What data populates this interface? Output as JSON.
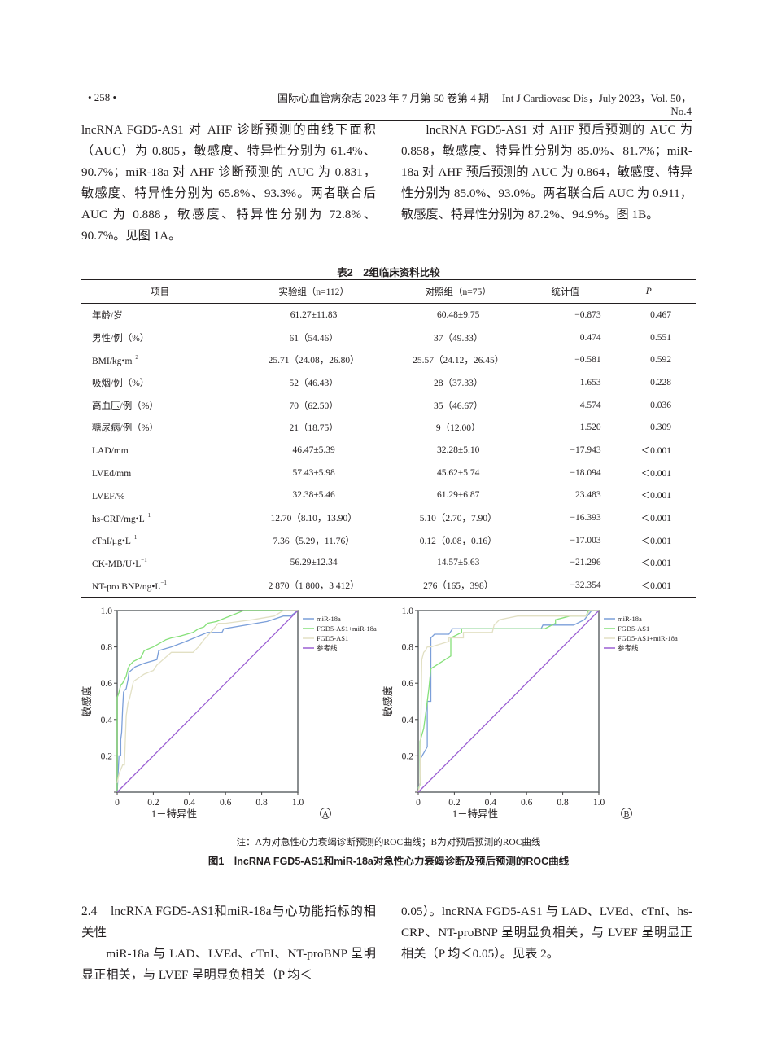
{
  "header": {
    "page_number": "• 258 •",
    "journal_cn": "国际心血管病杂志 2023 年 7 月第 50 卷第 4 期",
    "journal_en": "Int J Cardiovasc Dis，July 2023，Vol. 50，No.4"
  },
  "top_text": {
    "left_paragraph": "lncRNA FGD5-AS1 对 AHF 诊断预测的曲线下面积（AUC）为 0.805，敏感度、特异性分别为 61.4%、90.7%；miR-18a 对 AHF 诊断预测的 AUC 为 0.831，敏感度、特异性分别为 65.8%、93.3%。两者联合后 AUC 为 0.888，敏感度、特异性分别为 72.8%、90.7%。见图 1A。",
    "right_paragraph": "lncRNA FGD5-AS1 对 AHF 预后预测的 AUC 为 0.858，敏感度、特异性分别为 85.0%、81.7%；miR-18a 对 AHF 预后预测的 AUC 为 0.864，敏感度、特异性分别为 85.0%、93.0%。两者联合后 AUC 为 0.911，敏感度、特异性分别为 87.2%、94.9%。图 1B。"
  },
  "table2": {
    "title": "表2　2组临床资料比较",
    "headers": [
      "项目",
      "实验组（n=112）",
      "对照组（n=75）",
      "统计值",
      "P"
    ],
    "rows": [
      {
        "item": "年龄/岁",
        "sup": "",
        "exp": "61.27±11.83",
        "ctrl": "60.48±9.75",
        "stat": "−0.873",
        "p": "0.467"
      },
      {
        "item": "男性/例（%）",
        "sup": "",
        "exp": "61（54.46）",
        "ctrl": "37（49.33）",
        "stat": "0.474",
        "p": "0.551"
      },
      {
        "item": "BMI/kg•m",
        "sup": "−2",
        "exp": "25.71（24.08，26.80）",
        "ctrl": "25.57（24.12，26.45）",
        "stat": "−0.581",
        "p": "0.592"
      },
      {
        "item": "吸烟/例（%）",
        "sup": "",
        "exp": "52（46.43）",
        "ctrl": "28（37.33）",
        "stat": "1.653",
        "p": "0.228"
      },
      {
        "item": "高血压/例（%）",
        "sup": "",
        "exp": "70（62.50）",
        "ctrl": "35（46.67）",
        "stat": "4.574",
        "p": "0.036"
      },
      {
        "item": "糖尿病/例（%）",
        "sup": "",
        "exp": "21（18.75）",
        "ctrl": "9（12.00）",
        "stat": "1.520",
        "p": "0.309"
      },
      {
        "item": "LAD/mm",
        "sup": "",
        "exp": "46.47±5.39",
        "ctrl": "32.28±5.10",
        "stat": "−17.943",
        "p": "＜0.001"
      },
      {
        "item": "LVEd/mm",
        "sup": "",
        "exp": "57.43±5.98",
        "ctrl": "45.62±5.74",
        "stat": "−18.094",
        "p": "＜0.001"
      },
      {
        "item": "LVEF/%",
        "sup": "",
        "exp": "32.38±5.46",
        "ctrl": "61.29±6.87",
        "stat": "23.483",
        "p": "＜0.001"
      },
      {
        "item": "hs-CRP/mg•L",
        "sup": "−1",
        "exp": "12.70（8.10，13.90）",
        "ctrl": "5.10（2.70，7.90）",
        "stat": "−16.393",
        "p": "＜0.001"
      },
      {
        "item": "cTnI/μg•L",
        "sup": "−1",
        "exp": "7.36（5.29，11.76）",
        "ctrl": "0.12（0.08，0.16）",
        "stat": "−17.003",
        "p": "＜0.001"
      },
      {
        "item": "CK-MB/U•L",
        "sup": "−1",
        "exp": "56.29±12.34",
        "ctrl": "14.57±5.63",
        "stat": "−21.296",
        "p": "＜0.001"
      },
      {
        "item": "NT-pro BNP/ng•L",
        "sup": "−1",
        "exp": "2 870（1 800，3 412）",
        "ctrl": "276（165，398）",
        "stat": "−32.354",
        "p": "＜0.001"
      }
    ]
  },
  "chart_data": [
    {
      "type": "line",
      "panel": "A",
      "title": "",
      "xlabel": "1－特异性",
      "ylabel": "敏感度",
      "xlim": [
        0,
        1
      ],
      "ylim": [
        0,
        1
      ],
      "x_ticks": [
        "0",
        "0.2",
        "0.4",
        "0.6",
        "0.8",
        "1.0"
      ],
      "y_ticks": [
        "0.2",
        "0.4",
        "0.6",
        "0.8",
        "1.0"
      ],
      "grid": false,
      "legend_position": "right-top",
      "series": [
        {
          "name": "miR-18a",
          "color": "#7b9fd9",
          "x": [
            0,
            0.01,
            0.02,
            0.02,
            0.025,
            0.03,
            0.035,
            0.04,
            0.05,
            0.06,
            0.065,
            0.1,
            0.15,
            0.22,
            0.23,
            0.3,
            0.38,
            0.5,
            0.58,
            0.59,
            0.83,
            0.92,
            0.96,
            1.0
          ],
          "y": [
            0,
            0.2,
            0.2,
            0.29,
            0.33,
            0.46,
            0.55,
            0.56,
            0.57,
            0.62,
            0.66,
            0.69,
            0.71,
            0.73,
            0.78,
            0.8,
            0.83,
            0.88,
            0.88,
            0.9,
            0.94,
            0.97,
            0.97,
            1.0
          ]
        },
        {
          "name": "FGD5-AS1+miR-18a",
          "color": "#86e07a",
          "x": [
            0,
            0,
            0.01,
            0.02,
            0.03,
            0.05,
            0.06,
            0.07,
            0.09,
            0.13,
            0.15,
            0.2,
            0.27,
            0.3,
            0.35,
            0.42,
            0.45,
            0.48,
            0.5,
            0.55,
            0.6,
            0.65,
            0.7,
            1.0
          ],
          "y": [
            0,
            0.52,
            0.55,
            0.59,
            0.6,
            0.64,
            0.68,
            0.7,
            0.72,
            0.74,
            0.78,
            0.8,
            0.84,
            0.85,
            0.86,
            0.88,
            0.9,
            0.91,
            0.93,
            0.94,
            0.96,
            0.98,
            1.0,
            1.0
          ]
        },
        {
          "name": "FGD5-AS1",
          "color": "#e2e0c4",
          "x": [
            0,
            0.01,
            0.03,
            0.04,
            0.05,
            0.06,
            0.07,
            0.09,
            0.15,
            0.2,
            0.22,
            0.3,
            0.42,
            0.45,
            0.48,
            0.5,
            0.56,
            0.6,
            0.75,
            0.87,
            0.92,
            1.0
          ],
          "y": [
            0.05,
            0.1,
            0.15,
            0.15,
            0.42,
            0.49,
            0.52,
            0.61,
            0.65,
            0.67,
            0.7,
            0.77,
            0.77,
            0.8,
            0.84,
            0.86,
            0.93,
            0.93,
            0.95,
            0.97,
            1.0,
            1.0
          ]
        },
        {
          "name": "参考线",
          "color": "#9b5fd3",
          "x": [
            0,
            1
          ],
          "y": [
            0,
            1
          ]
        }
      ]
    },
    {
      "type": "line",
      "panel": "B",
      "title": "",
      "xlabel": "1－特异性",
      "ylabel": "敏感度",
      "xlim": [
        0,
        1
      ],
      "ylim": [
        0,
        1
      ],
      "x_ticks": [
        "0",
        "0.2",
        "0.4",
        "0.6",
        "0.8",
        "1.0"
      ],
      "y_ticks": [
        "0.2",
        "0.4",
        "0.6",
        "0.8",
        "1.0"
      ],
      "grid": false,
      "legend_position": "right-top",
      "series": [
        {
          "name": "miR-18a",
          "color": "#7b9fd9",
          "x": [
            0,
            0.01,
            0.01,
            0.05,
            0.05,
            0.07,
            0.07,
            0.09,
            0.17,
            0.19,
            0.68,
            0.69,
            0.86,
            0.92,
            0.96,
            1.0
          ],
          "y": [
            0.02,
            0.05,
            0.18,
            0.25,
            0.5,
            0.5,
            0.85,
            0.87,
            0.87,
            0.9,
            0.9,
            0.92,
            0.92,
            0.95,
            1.0,
            1.0
          ]
        },
        {
          "name": "FGD5-AS1",
          "color": "#86e07a",
          "x": [
            0,
            0.01,
            0.01,
            0.03,
            0.05,
            0.06,
            0.07,
            0.18,
            0.18,
            0.24,
            0.24,
            0.7,
            0.76,
            0.76,
            0.84,
            0.93,
            0.94,
            1.0
          ],
          "y": [
            0.02,
            0.04,
            0.28,
            0.35,
            0.5,
            0.58,
            0.68,
            0.75,
            0.85,
            0.88,
            0.9,
            0.9,
            0.93,
            0.95,
            0.97,
            0.97,
            1.0,
            1.0
          ]
        },
        {
          "name": "FGD5-AS1+miR-18a",
          "color": "#e2e0c4",
          "x": [
            0,
            0.01,
            0.02,
            0.03,
            0.04,
            0.05,
            0.07,
            0.17,
            0.17,
            0.25,
            0.25,
            0.41,
            0.42,
            0.45,
            0.55,
            0.93,
            0.95,
            1.0
          ],
          "y": [
            0,
            0.05,
            0.73,
            0.77,
            0.78,
            0.8,
            0.8,
            0.83,
            0.85,
            0.85,
            0.88,
            0.88,
            0.92,
            0.95,
            0.97,
            0.97,
            1.0,
            1.0
          ]
        },
        {
          "name": "参考线",
          "color": "#9b5fd3",
          "x": [
            0,
            1
          ],
          "y": [
            0,
            1
          ]
        }
      ]
    }
  ],
  "figure": {
    "panel_a_label": "A",
    "panel_b_label": "B",
    "note": "注：A为对急性心力衰竭诊断预测的ROC曲线；B为对预后预测的ROC曲线",
    "caption": "图1　lncRNA FGD5-AS1和miR-18a对急性心力衰竭诊断及预后预测的ROC曲线"
  },
  "section": {
    "heading": "2.4　lncRNA FGD5-AS1和miR-18a与心功能指标的相关性",
    "left_paragraph": "miR-18a 与 LAD、LVEd、cTnI、NT-proBNP 呈明显正相关，与 LVEF 呈明显负相关（P 均＜",
    "right_paragraph": "0.05）。lncRNA FGD5-AS1 与 LAD、LVEd、cTnI、hs-CRP、NT-proBNP 呈明显负相关，与 LVEF 呈明显正相关（P 均＜0.05）。见表 2。"
  }
}
